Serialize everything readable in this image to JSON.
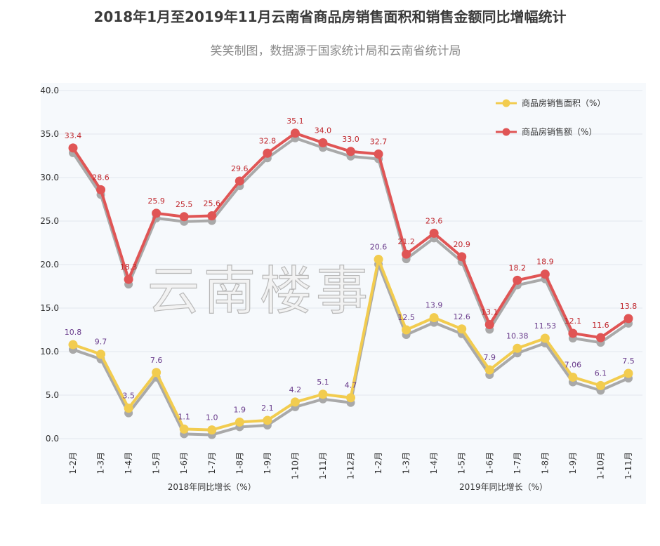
{
  "chart_data": {
    "type": "line",
    "title": "2018年1月至2019年11月云南省商品房销售面积和销售金额同比增幅统计",
    "subtitle": "笑笑制图，数据源于国家统计局和云南省统计局",
    "watermark": "云南楼事",
    "categories": [
      "1-2月",
      "1-3月",
      "1-4月",
      "1-5月",
      "1-6月",
      "1-7月",
      "1-8月",
      "1-9月",
      "1-10月",
      "1-11月",
      "1-12月",
      "1-2月",
      "1-3月",
      "1-4月",
      "1-5月",
      "1-6月",
      "1-7月",
      "1-8月",
      "1-9月",
      "1-10月",
      "1-11月"
    ],
    "groups": [
      {
        "label": "2018年同比增长（%）",
        "from": 0,
        "to": 10
      },
      {
        "label": "2019年同比增长（%）",
        "from": 11,
        "to": 20
      }
    ],
    "ylim": [
      0,
      40
    ],
    "yticks": [
      "0.0",
      "5.0",
      "10.0",
      "15.0",
      "20.0",
      "25.0",
      "30.0",
      "35.0",
      "40.0"
    ],
    "grid": true,
    "legend_position": "top-right",
    "series": [
      {
        "name": "商品房销售面积（%）",
        "color": "#f2cc4f",
        "label_color": "#6a3c8c",
        "values": [
          10.8,
          9.7,
          3.5,
          7.6,
          1.1,
          1.0,
          1.9,
          2.1,
          4.2,
          5.1,
          4.7,
          20.6,
          12.5,
          13.9,
          12.6,
          7.9,
          10.38,
          11.53,
          7.06,
          6.1,
          7.5
        ],
        "labels": [
          "10.8",
          "9.7",
          "3.5",
          "7.6",
          "1.1",
          "1.0",
          "1.9",
          "2.1",
          "4.2",
          "5.1",
          "4.7",
          "20.6",
          "12.5",
          "13.9",
          "12.6",
          "7.9",
          "10.38",
          "11.53",
          "7.06",
          "6.1",
          "7.5"
        ]
      },
      {
        "name": "商品房销售额（%）",
        "color": "#e05555",
        "label_color": "#c0282e",
        "values": [
          33.4,
          28.6,
          18.3,
          25.9,
          25.5,
          25.6,
          29.6,
          32.8,
          35.1,
          34.0,
          33.0,
          32.7,
          21.2,
          23.6,
          20.9,
          13.1,
          18.2,
          18.9,
          12.1,
          11.6,
          13.8
        ],
        "labels": [
          "33.4",
          "28.6",
          "18.3",
          "25.9",
          "25.5",
          "25.6",
          "29.6",
          "32.8",
          "35.1",
          "34.0",
          "33.0",
          "32.7",
          "21.2",
          "23.6",
          "20.9",
          "13.1",
          "18.2",
          "18.9",
          "12.1",
          "11.6",
          "13.8"
        ]
      }
    ],
    "shadow_color": "#a9a9a9",
    "background_color": "#f6f9fc",
    "grid_color": "#e3e8ee"
  }
}
